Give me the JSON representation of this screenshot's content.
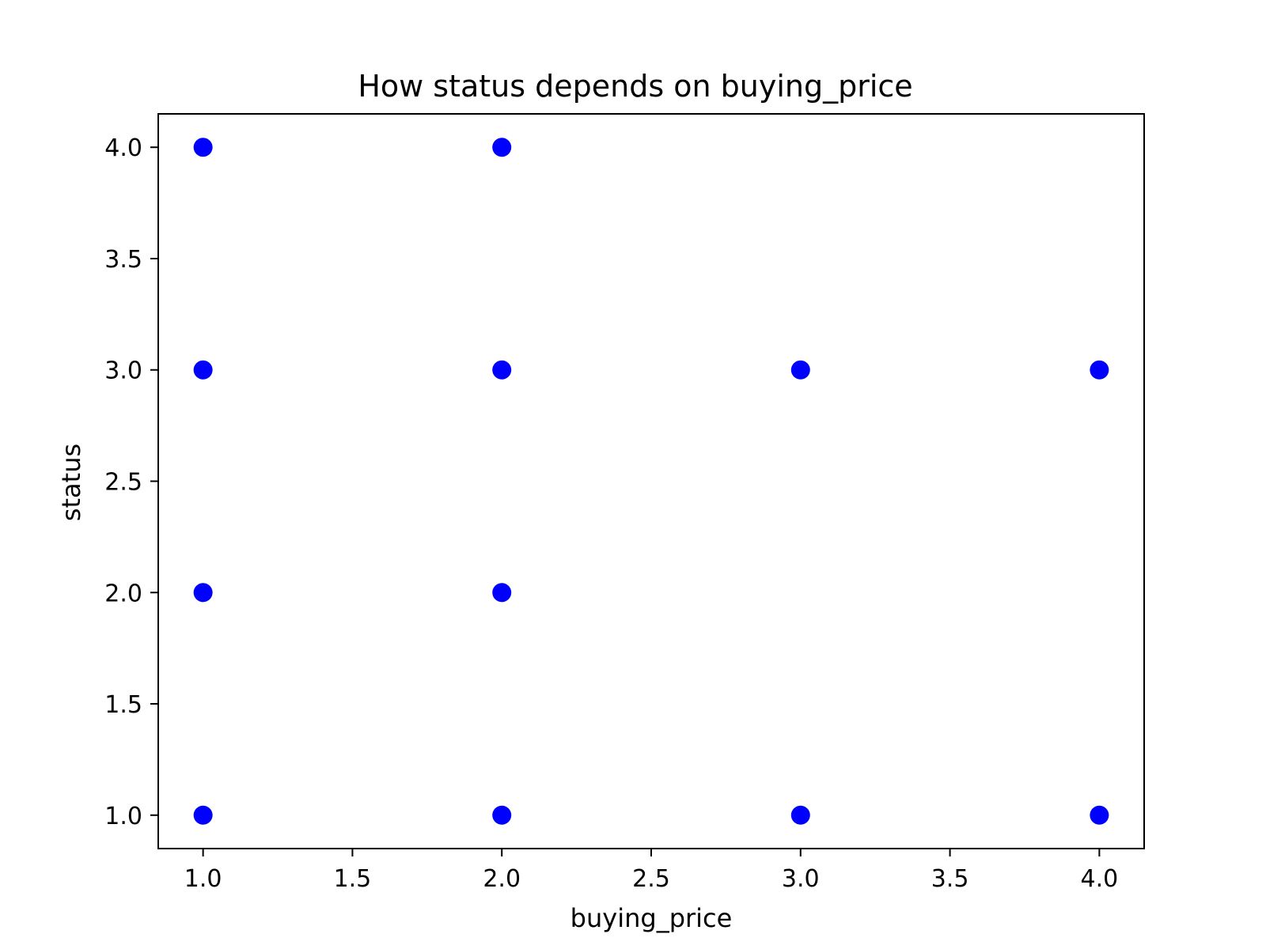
{
  "chart_data": {
    "type": "scatter",
    "title": "How status depends on buying_price",
    "xlabel": "buying_price",
    "ylabel": "status",
    "xlim": [
      0.85,
      4.15
    ],
    "ylim": [
      0.85,
      4.15
    ],
    "xticks": [
      "1.0",
      "1.5",
      "2.0",
      "2.5",
      "3.0",
      "3.5",
      "4.0"
    ],
    "yticks": [
      "1.0",
      "1.5",
      "2.0",
      "2.5",
      "3.0",
      "3.5",
      "4.0"
    ],
    "grid": false,
    "legend": "none",
    "marker_color": "#0000ff",
    "points": [
      {
        "x": 1,
        "y": 4
      },
      {
        "x": 1,
        "y": 3
      },
      {
        "x": 1,
        "y": 2
      },
      {
        "x": 1,
        "y": 1
      },
      {
        "x": 2,
        "y": 4
      },
      {
        "x": 2,
        "y": 3
      },
      {
        "x": 2,
        "y": 2
      },
      {
        "x": 2,
        "y": 1
      },
      {
        "x": 3,
        "y": 3
      },
      {
        "x": 3,
        "y": 1
      },
      {
        "x": 4,
        "y": 3
      },
      {
        "x": 4,
        "y": 1
      }
    ]
  }
}
